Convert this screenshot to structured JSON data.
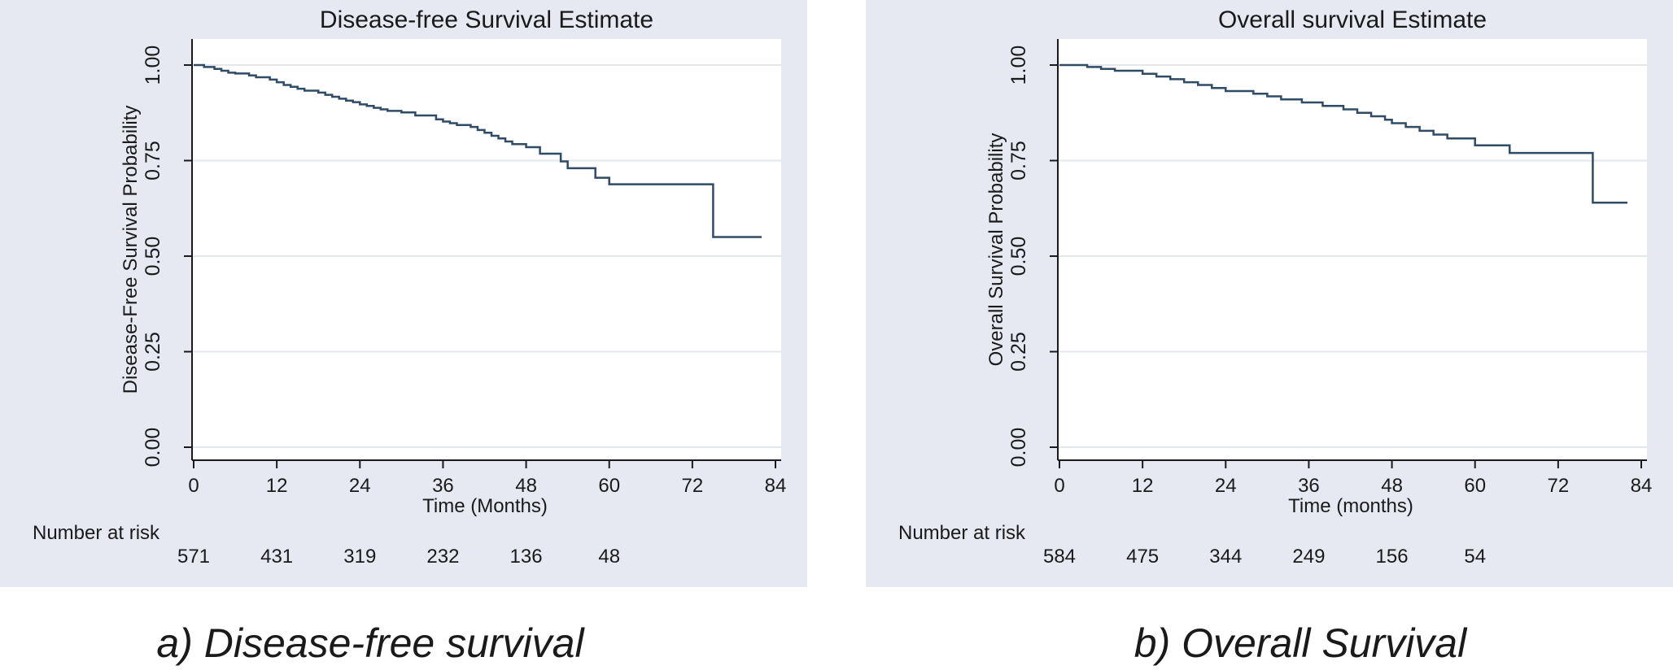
{
  "chart_data": [
    {
      "type": "line",
      "chart_type": "kaplan-meier step",
      "title": "Disease-free Survival Estimate",
      "xlabel": "Time (Months)",
      "ylabel": "Disease-Free Survival Probability",
      "xlim": [
        0,
        84
      ],
      "ylim": [
        0,
        1
      ],
      "x_ticks": [
        "0",
        "12",
        "24",
        "36",
        "48",
        "60",
        "72",
        "84"
      ],
      "y_ticks": [
        "0.00",
        "0.25",
        "0.50",
        "0.75",
        "1.00"
      ],
      "grid": "horizontal",
      "line_color": "#2f4b66",
      "background_color": "#e6e9f2",
      "caption": "a) Disease-free survival",
      "risk_table": {
        "label": "Number at risk",
        "times": [
          0,
          12,
          24,
          36,
          48,
          60
        ],
        "counts": [
          "571",
          "431",
          "319",
          "232",
          "136",
          "48"
        ]
      },
      "series": [
        {
          "x": [
            0,
            1.5,
            3,
            4,
            5,
            6,
            8,
            9,
            11,
            12,
            13,
            14,
            15,
            16,
            18,
            19,
            20,
            21,
            22,
            23,
            24,
            25,
            26,
            27,
            28,
            30,
            32,
            35,
            36,
            37,
            38,
            40,
            41,
            42,
            43,
            44,
            45,
            46,
            48,
            50,
            53,
            54,
            58,
            60,
            75,
            82
          ],
          "y": [
            1.0,
            0.995,
            0.99,
            0.985,
            0.98,
            0.978,
            0.973,
            0.968,
            0.962,
            0.955,
            0.948,
            0.943,
            0.938,
            0.933,
            0.928,
            0.922,
            0.917,
            0.912,
            0.907,
            0.903,
            0.897,
            0.893,
            0.888,
            0.884,
            0.88,
            0.876,
            0.868,
            0.858,
            0.852,
            0.848,
            0.843,
            0.838,
            0.83,
            0.823,
            0.815,
            0.808,
            0.8,
            0.793,
            0.785,
            0.768,
            0.748,
            0.73,
            0.705,
            0.688,
            0.55,
            0.55
          ]
        }
      ]
    },
    {
      "type": "line",
      "chart_type": "kaplan-meier step",
      "title": "Overall survival Estimate",
      "xlabel": "Time (months)",
      "ylabel": "Overall Survival Probability",
      "xlim": [
        0,
        84
      ],
      "ylim": [
        0,
        1
      ],
      "x_ticks": [
        "0",
        "12",
        "24",
        "36",
        "48",
        "60",
        "72",
        "84"
      ],
      "y_ticks": [
        "0.00",
        "0.25",
        "0.50",
        "0.75",
        "1.00"
      ],
      "grid": "horizontal",
      "line_color": "#2f4b66",
      "background_color": "#e6e9f2",
      "caption": "b) Overall Survival",
      "risk_table": {
        "label": "Number at risk",
        "times": [
          0,
          12,
          24,
          36,
          48,
          60
        ],
        "counts": [
          "584",
          "475",
          "344",
          "249",
          "156",
          "54"
        ]
      },
      "series": [
        {
          "x": [
            0,
            4,
            6,
            8,
            12,
            14,
            16,
            18,
            20,
            22,
            24,
            28,
            30,
            32,
            35,
            38,
            41,
            43,
            45,
            47,
            48,
            50,
            52,
            54,
            56,
            60,
            65,
            77,
            82
          ],
          "y": [
            1.0,
            0.995,
            0.99,
            0.985,
            0.977,
            0.97,
            0.963,
            0.955,
            0.948,
            0.94,
            0.932,
            0.925,
            0.918,
            0.91,
            0.902,
            0.893,
            0.884,
            0.875,
            0.866,
            0.857,
            0.848,
            0.838,
            0.828,
            0.818,
            0.808,
            0.79,
            0.77,
            0.64,
            0.64
          ]
        }
      ]
    }
  ]
}
